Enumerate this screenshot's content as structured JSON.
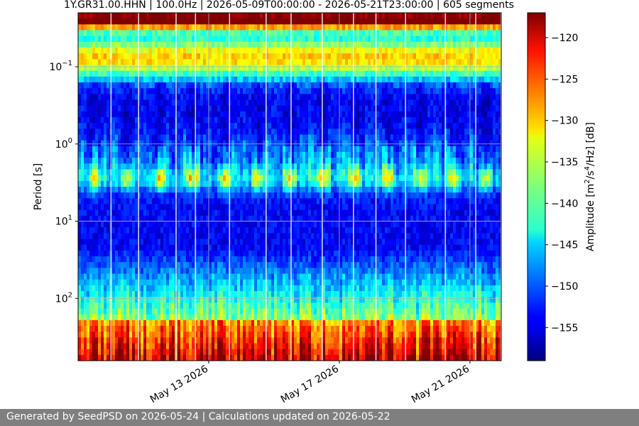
{
  "chart_data": {
    "type": "heatmap",
    "title": "1Y.GR31.00.HHN | 100.0Hz | 2026-05-09T00:00:00 - 2026-05-21T23:00:00 | 605 segments",
    "ylabel": "Period [s]",
    "xlabel": "",
    "x_range": [
      "2026-05-09T00:00:00",
      "2026-05-21T23:00:00"
    ],
    "x_ticks": [
      {
        "date": "2026-05-13",
        "label": "May 13 2026"
      },
      {
        "date": "2026-05-17",
        "label": "May 17 2026"
      },
      {
        "date": "2026-05-21",
        "label": "May 21 2026"
      }
    ],
    "y_scale": "log",
    "y_inverted": true,
    "y_range": [
      0.02,
      640
    ],
    "y_ticks": [
      {
        "value": 0.1,
        "label": "10",
        "exp": "−1"
      },
      {
        "value": 1,
        "label": "10",
        "exp": "0"
      },
      {
        "value": 10,
        "label": "10",
        "exp": "1"
      },
      {
        "value": 100,
        "label": "10",
        "exp": "2"
      }
    ],
    "grid": true,
    "colormap": "jet",
    "colorbar": {
      "label_parts": [
        "Amplitude [m",
        "2",
        "/s",
        "4",
        "/Hz] [dB]"
      ],
      "range": [
        -159,
        -117
      ],
      "ticks": [
        -120,
        -125,
        -130,
        -135,
        -140,
        -145,
        -150,
        -155
      ]
    },
    "notes": "Spectrogram of amplitude (dB) vs time and period; high amplitude at short periods (<0.05 s) and long periods (>100 s); diurnal bursts near 3 s; low amplitude bands around 0.5 s and 10-30 s."
  },
  "footer": {
    "text": "Generated by SeedPSD on 2026-05-24 | Calculations updated on 2026-05-22",
    "background": "#7f7f7f"
  }
}
